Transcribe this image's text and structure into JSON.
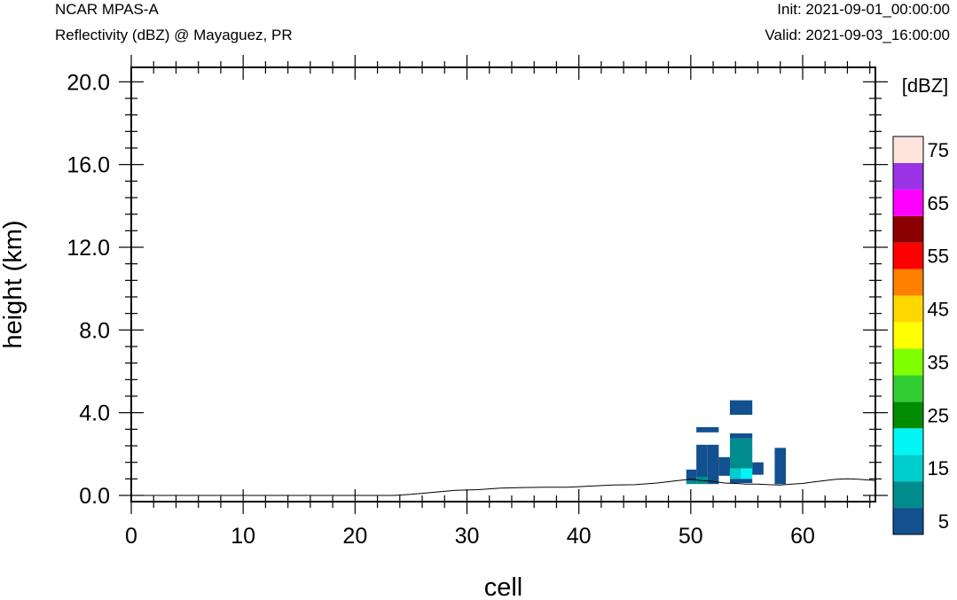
{
  "header": {
    "model": "NCAR MPAS-A",
    "field": "Reflectivity (dBZ) @ Mayaguez, PR",
    "init": "Init: 2021-09-01_00:00:00",
    "valid": "Valid: 2021-09-03_16:00:00"
  },
  "chart_data": {
    "type": "heatmap",
    "title": "Reflectivity (dBZ) @ Mayaguez, PR",
    "xlabel": "cell",
    "ylabel": "height (km)",
    "xlim": [
      0,
      66.5
    ],
    "ylim": [
      -0.3,
      20.7
    ],
    "x_ticks": [
      0,
      10,
      20,
      30,
      40,
      50,
      60
    ],
    "x_tick_labels": [
      "0",
      "10",
      "20",
      "30",
      "40",
      "50",
      "60"
    ],
    "y_ticks": [
      0,
      4,
      8,
      12,
      16,
      20
    ],
    "y_tick_labels": [
      "0.0",
      "4.0",
      "8.0",
      "12.0",
      "16.0",
      "20.0"
    ],
    "colorbar": {
      "title": "[dBZ]",
      "levels": [
        5,
        10,
        15,
        20,
        25,
        30,
        35,
        40,
        45,
        50,
        55,
        60,
        65,
        70,
        75
      ],
      "tick_labels": [
        "5",
        "15",
        "25",
        "35",
        "45",
        "55",
        "65",
        "75"
      ],
      "colors": [
        "#12508f",
        "#008c8c",
        "#00cdcd",
        "#00f5f5",
        "#008b00",
        "#32cd32",
        "#7fff00",
        "#ffff00",
        "#ffd700",
        "#ff7f00",
        "#ff0000",
        "#8b0000",
        "#ff00ff",
        "#9a32e6",
        "#ffe4dc"
      ]
    },
    "terrain": [
      [
        0,
        0.0
      ],
      [
        23.5,
        0.0
      ],
      [
        25,
        0.05
      ],
      [
        27,
        0.15
      ],
      [
        29,
        0.25
      ],
      [
        31,
        0.28
      ],
      [
        33,
        0.35
      ],
      [
        35,
        0.38
      ],
      [
        37,
        0.4
      ],
      [
        39,
        0.4
      ],
      [
        41,
        0.45
      ],
      [
        43,
        0.5
      ],
      [
        45,
        0.52
      ],
      [
        47,
        0.6
      ],
      [
        48.5,
        0.7
      ],
      [
        50,
        0.78
      ],
      [
        51,
        0.72
      ],
      [
        52,
        0.68
      ],
      [
        53,
        0.6
      ],
      [
        54,
        0.58
      ],
      [
        55,
        0.55
      ],
      [
        56,
        0.55
      ],
      [
        57,
        0.52
      ],
      [
        58,
        0.5
      ],
      [
        59,
        0.55
      ],
      [
        60,
        0.58
      ],
      [
        61,
        0.65
      ],
      [
        62,
        0.72
      ],
      [
        63,
        0.78
      ],
      [
        64,
        0.8
      ],
      [
        65,
        0.78
      ],
      [
        66.5,
        0.72
      ]
    ],
    "cells": [
      {
        "x0": 49.6,
        "x1": 50.5,
        "y0": 0.7,
        "y1": 1.25,
        "dbz": 5
      },
      {
        "x0": 49.6,
        "x1": 50.5,
        "y0": 0.55,
        "y1": 0.7,
        "dbz": 10
      },
      {
        "x0": 50.5,
        "x1": 51.5,
        "y0": 0.9,
        "y1": 2.45,
        "dbz": 5
      },
      {
        "x0": 50.5,
        "x1": 51.5,
        "y0": 0.55,
        "y1": 0.9,
        "dbz": 10
      },
      {
        "x0": 50.5,
        "x1": 52.5,
        "y0": 3.05,
        "y1": 3.3,
        "dbz": 5
      },
      {
        "x0": 51.5,
        "x1": 52.5,
        "y0": 0.55,
        "y1": 2.45,
        "dbz": 5
      },
      {
        "x0": 52.5,
        "x1": 53.5,
        "y0": 0.95,
        "y1": 1.85,
        "dbz": 5
      },
      {
        "x0": 53.5,
        "x1": 55.5,
        "y0": 3.9,
        "y1": 4.6,
        "dbz": 5
      },
      {
        "x0": 53.5,
        "x1": 55.5,
        "y0": 2.75,
        "y1": 3.0,
        "dbz": 5
      },
      {
        "x0": 53.5,
        "x1": 55.5,
        "y0": 1.3,
        "y1": 2.75,
        "dbz": 10
      },
      {
        "x0": 53.5,
        "x1": 54.5,
        "y0": 0.8,
        "y1": 1.3,
        "dbz": 15
      },
      {
        "x0": 54.5,
        "x1": 55.5,
        "y0": 0.8,
        "y1": 1.3,
        "dbz": 20
      },
      {
        "x0": 53.5,
        "x1": 55.5,
        "y0": 0.6,
        "y1": 0.8,
        "dbz": 5
      },
      {
        "x0": 55.5,
        "x1": 56.5,
        "y0": 1.0,
        "y1": 1.6,
        "dbz": 5
      },
      {
        "x0": 57.5,
        "x1": 58.5,
        "y0": 0.55,
        "y1": 2.3,
        "dbz": 5
      }
    ]
  }
}
